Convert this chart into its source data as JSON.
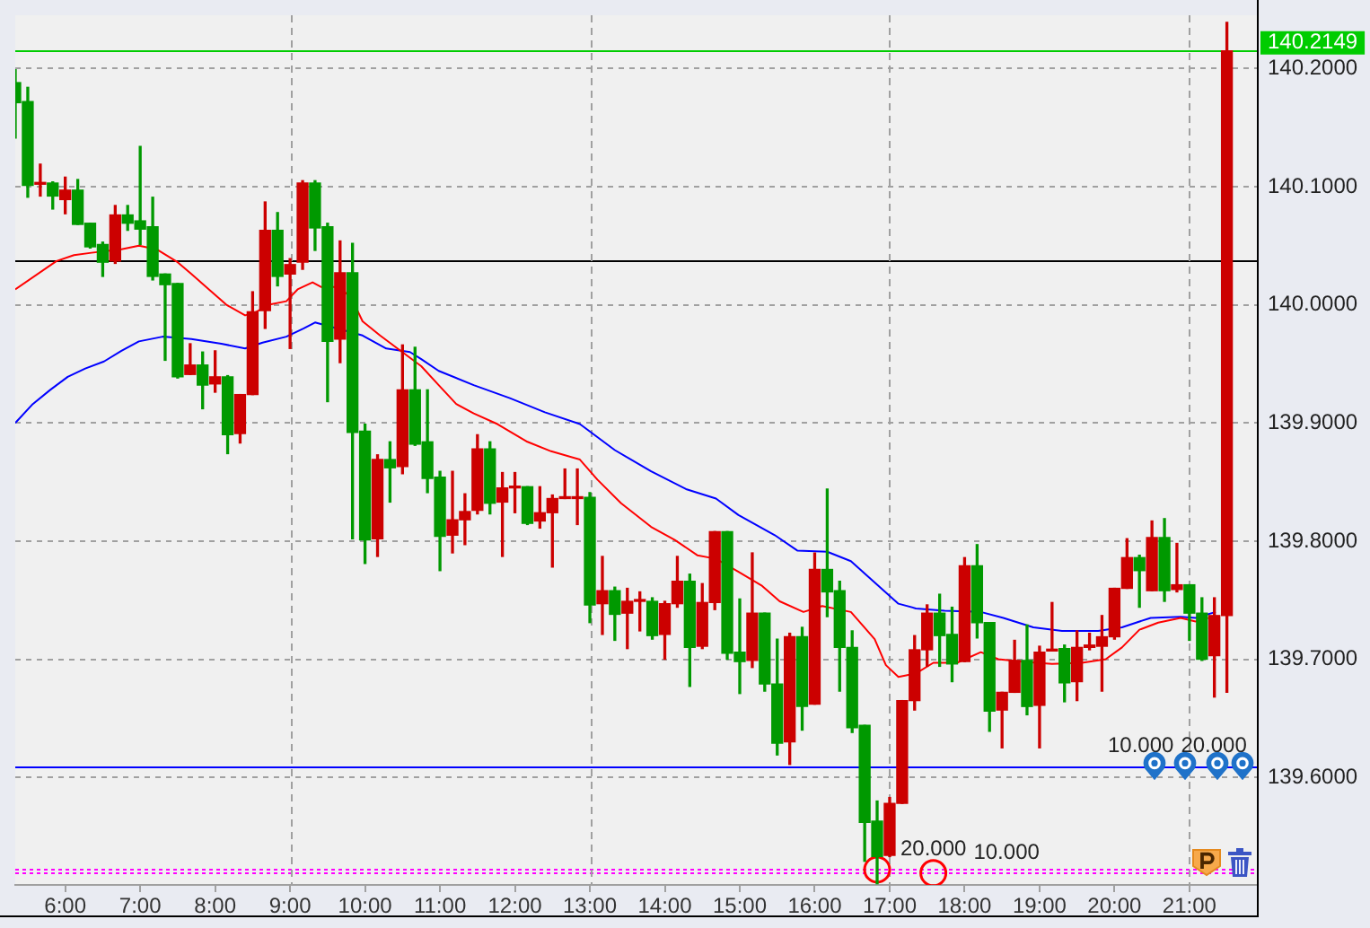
{
  "chart_data": {
    "type": "candlestick",
    "x": [
      5.333,
      5.5,
      5.667,
      5.833,
      6,
      6.167,
      6.333,
      6.5,
      6.667,
      6.833,
      7,
      7.167,
      7.333,
      7.5,
      7.667,
      7.833,
      8,
      8.167,
      8.333,
      8.5,
      8.667,
      8.833,
      9,
      9.167,
      9.333,
      9.5,
      9.667,
      9.833,
      10,
      10.167,
      10.333,
      10.5,
      10.667,
      10.833,
      11,
      11.167,
      11.333,
      11.5,
      11.667,
      11.833,
      12,
      12.167,
      12.333,
      12.5,
      12.667,
      12.833,
      13,
      13.167,
      13.333,
      13.5,
      13.667,
      13.833,
      14,
      14.167,
      14.333,
      14.5,
      14.667,
      14.833,
      15,
      15.167,
      15.333,
      15.5,
      15.667,
      15.833,
      16,
      16.167,
      16.333,
      16.5,
      16.667,
      16.833,
      17,
      17.167,
      17.333,
      17.5,
      17.667,
      17.833,
      18,
      18.167,
      18.333,
      18.5,
      18.667,
      18.833,
      19,
      19.167,
      19.333,
      19.5,
      19.667,
      19.833,
      20,
      20.167,
      20.333,
      20.5,
      20.667,
      20.833,
      21,
      21.167,
      21.333,
      21.5
    ],
    "ohlc": [
      [
        140.188,
        140.199,
        140.141,
        140.171
      ],
      [
        140.172,
        140.184,
        140.091,
        140.101
      ],
      [
        140.102,
        140.119,
        140.092,
        140.103
      ],
      [
        140.103,
        140.104,
        140.081,
        140.092
      ],
      [
        140.089,
        140.108,
        140.077,
        140.097
      ],
      [
        140.097,
        140.106,
        140.068,
        140.068
      ],
      [
        140.069,
        140.069,
        140.048,
        140.049
      ],
      [
        140.051,
        140.053,
        140.024,
        140.036
      ],
      [
        140.037,
        140.084,
        140.035,
        140.076
      ],
      [
        140.076,
        140.084,
        140.063,
        140.069
      ],
      [
        140.071,
        140.134,
        140.051,
        140.064
      ],
      [
        140.066,
        140.091,
        140.021,
        140.024
      ],
      [
        140.026,
        140.026,
        139.953,
        140.017
      ],
      [
        140.018,
        140.018,
        139.938,
        139.939
      ],
      [
        139.941,
        139.967,
        139.941,
        139.949
      ],
      [
        139.949,
        139.96,
        139.912,
        139.932
      ],
      [
        139.933,
        139.961,
        139.926,
        139.939
      ],
      [
        139.939,
        139.94,
        139.874,
        139.89
      ],
      [
        139.891,
        139.924,
        139.883,
        139.924
      ],
      [
        139.924,
        140.011,
        139.924,
        139.994
      ],
      [
        139.995,
        140.087,
        139.98,
        140.063
      ],
      [
        140.063,
        140.078,
        140.016,
        140.024
      ],
      [
        140.026,
        140.039,
        139.963,
        140.034
      ],
      [
        140.036,
        140.105,
        140.03,
        140.103
      ],
      [
        140.103,
        140.105,
        140.046,
        140.065
      ],
      [
        140.066,
        140.069,
        139.918,
        139.969
      ],
      [
        139.971,
        140.054,
        139.951,
        140.027
      ],
      [
        140.027,
        140.052,
        139.802,
        139.892
      ],
      [
        139.893,
        139.899,
        139.781,
        139.801
      ],
      [
        139.802,
        139.873,
        139.787,
        139.869
      ],
      [
        139.869,
        139.884,
        139.833,
        139.862
      ],
      [
        139.863,
        139.966,
        139.857,
        139.928
      ],
      [
        139.928,
        139.964,
        139.881,
        139.882
      ],
      [
        139.884,
        139.928,
        139.841,
        139.853
      ],
      [
        139.854,
        139.859,
        139.775,
        139.804
      ],
      [
        139.805,
        139.859,
        139.79,
        139.818
      ],
      [
        139.818,
        139.84,
        139.797,
        139.825
      ],
      [
        139.826,
        139.89,
        139.823,
        139.878
      ],
      [
        139.878,
        139.884,
        139.823,
        139.832
      ],
      [
        139.833,
        139.858,
        139.787,
        139.845
      ],
      [
        139.845,
        139.858,
        139.824,
        139.846
      ],
      [
        139.846,
        139.846,
        139.814,
        139.815
      ],
      [
        139.817,
        139.846,
        139.811,
        139.824
      ],
      [
        139.824,
        139.839,
        139.778,
        139.836
      ],
      [
        139.836,
        139.861,
        139.836,
        139.837
      ],
      [
        139.836,
        139.861,
        139.814,
        139.837
      ],
      [
        139.837,
        139.841,
        139.731,
        139.746
      ],
      [
        139.747,
        139.787,
        139.721,
        139.758
      ],
      [
        139.758,
        139.761,
        139.716,
        139.738
      ],
      [
        139.739,
        139.76,
        139.709,
        139.749
      ],
      [
        139.749,
        139.757,
        139.724,
        139.75
      ],
      [
        139.749,
        139.752,
        139.717,
        139.72
      ],
      [
        139.721,
        139.749,
        139.7,
        139.747
      ],
      [
        139.747,
        139.787,
        139.744,
        139.766
      ],
      [
        139.766,
        139.772,
        139.677,
        139.71
      ],
      [
        139.711,
        139.764,
        139.709,
        139.748
      ],
      [
        139.748,
        139.808,
        139.742,
        139.808
      ],
      [
        139.808,
        139.808,
        139.7,
        139.705
      ],
      [
        139.706,
        139.751,
        139.671,
        139.698
      ],
      [
        139.699,
        139.79,
        139.693,
        139.739
      ],
      [
        139.739,
        139.739,
        139.673,
        139.679
      ],
      [
        139.679,
        139.717,
        139.619,
        139.629
      ],
      [
        139.63,
        139.722,
        139.611,
        139.719
      ],
      [
        139.719,
        139.727,
        139.64,
        139.66
      ],
      [
        139.662,
        139.79,
        139.662,
        139.776
      ],
      [
        139.776,
        139.844,
        139.736,
        139.757
      ],
      [
        139.758,
        139.766,
        139.673,
        139.71
      ],
      [
        139.71,
        139.724,
        139.638,
        139.642
      ],
      [
        139.644,
        139.644,
        139.529,
        139.562
      ],
      [
        139.563,
        139.58,
        139.51,
        139.533
      ],
      [
        139.534,
        139.583,
        139.533,
        139.578
      ],
      [
        139.578,
        139.665,
        139.578,
        139.665
      ],
      [
        139.665,
        139.72,
        139.657,
        139.708
      ],
      [
        139.708,
        139.746,
        139.694,
        139.739
      ],
      [
        139.739,
        139.755,
        139.694,
        139.72
      ],
      [
        139.721,
        139.744,
        139.681,
        139.696
      ],
      [
        139.698,
        139.786,
        139.698,
        139.779
      ],
      [
        139.779,
        139.797,
        139.718,
        139.731
      ],
      [
        139.731,
        139.731,
        139.639,
        139.656
      ],
      [
        139.657,
        139.672,
        139.625,
        139.672
      ],
      [
        139.672,
        139.716,
        139.672,
        139.699
      ],
      [
        139.699,
        139.729,
        139.653,
        139.66
      ],
      [
        139.661,
        139.711,
        139.625,
        139.706
      ],
      [
        139.707,
        139.748,
        139.707,
        139.708
      ],
      [
        139.709,
        139.712,
        139.664,
        139.68
      ],
      [
        139.681,
        139.724,
        139.665,
        139.71
      ],
      [
        139.71,
        139.722,
        139.708,
        139.712
      ],
      [
        139.711,
        139.737,
        139.673,
        139.719
      ],
      [
        139.719,
        139.76,
        139.717,
        139.76
      ],
      [
        139.76,
        139.802,
        139.76,
        139.786
      ],
      [
        139.786,
        139.788,
        139.744,
        139.775
      ],
      [
        139.758,
        139.817,
        139.758,
        139.803
      ],
      [
        139.803,
        139.819,
        139.749,
        139.758
      ],
      [
        139.759,
        139.798,
        139.757,
        139.763
      ],
      [
        139.763,
        139.763,
        139.716,
        139.739
      ],
      [
        139.739,
        139.752,
        139.699,
        139.7
      ],
      [
        139.703,
        139.752,
        139.668,
        139.737
      ],
      [
        139.737,
        140.239,
        139.672,
        140.2149
      ]
    ],
    "colors": [
      "#009900",
      "#009900",
      "#cc0000",
      "#009900",
      "#cc0000",
      "#009900",
      "#009900",
      "#009900",
      "#cc0000",
      "#009900",
      "#009900",
      "#009900",
      "#009900",
      "#009900",
      "#cc0000",
      "#009900",
      "#cc0000",
      "#009900",
      "#cc0000",
      "#cc0000",
      "#cc0000",
      "#009900",
      "#cc0000",
      "#cc0000",
      "#009900",
      "#009900",
      "#cc0000",
      "#009900",
      "#009900",
      "#cc0000",
      "#009900",
      "#cc0000",
      "#009900",
      "#009900",
      "#009900",
      "#cc0000",
      "#cc0000",
      "#cc0000",
      "#009900",
      "#cc0000",
      "#cc0000",
      "#009900",
      "#cc0000",
      "#cc0000",
      "#cc0000",
      "#cc0000",
      "#009900",
      "#cc0000",
      "#009900",
      "#cc0000",
      "#cc0000",
      "#009900",
      "#cc0000",
      "#cc0000",
      "#009900",
      "#cc0000",
      "#cc0000",
      "#009900",
      "#009900",
      "#cc0000",
      "#009900",
      "#009900",
      "#cc0000",
      "#009900",
      "#cc0000",
      "#009900",
      "#009900",
      "#009900",
      "#009900",
      "#009900",
      "#cc0000",
      "#cc0000",
      "#cc0000",
      "#cc0000",
      "#009900",
      "#009900",
      "#cc0000",
      "#009900",
      "#009900",
      "#cc0000",
      "#cc0000",
      "#009900",
      "#cc0000",
      "#cc0000",
      "#009900",
      "#cc0000",
      "#cc0000",
      "#cc0000",
      "#cc0000",
      "#cc0000",
      "#009900",
      "#cc0000",
      "#009900",
      "#cc0000",
      "#009900",
      "#009900",
      "#cc0000",
      "#cc0000"
    ],
    "series": [
      {
        "type": "line",
        "color": "#ff0000",
        "marker": "none",
        "x": [
          5.333,
          5.883,
          6.117,
          6.35,
          6.75,
          6.983,
          7.217,
          7.5,
          7.683,
          7.917,
          8.15,
          8.4,
          8.55,
          8.717,
          8.95,
          9.1,
          9.3,
          9.417,
          9.65,
          9.817,
          9.967,
          10.2,
          10.517,
          10.75,
          10.983,
          11.217,
          11.45,
          11.767,
          12.167,
          12.483,
          12.867,
          13.1,
          13.417,
          13.817,
          14.133,
          14.433,
          14.683,
          14.983,
          15.3,
          15.533,
          15.85,
          16.1,
          16.483,
          16.8,
          16.95,
          17.117,
          17.35,
          17.583,
          17.9,
          18.217,
          18.45,
          18.767,
          19.167,
          19.567,
          19.883,
          20.1,
          20.333,
          20.583,
          20.883,
          21.083,
          21.25
        ],
        "values": [
          140.013,
          140.037,
          140.042,
          140.044,
          140.047,
          140.05,
          140.047,
          140.036,
          140.026,
          140.013,
          140.0,
          139.991,
          139.994,
          140.0,
          140.003,
          140.013,
          140.019,
          140.015,
          140.015,
          140.006,
          139.986,
          139.974,
          139.959,
          139.948,
          139.932,
          139.916,
          139.908,
          139.899,
          139.884,
          139.876,
          139.869,
          139.852,
          139.832,
          139.812,
          139.801,
          139.788,
          139.785,
          139.774,
          139.762,
          139.749,
          139.74,
          139.745,
          139.74,
          139.717,
          139.695,
          139.685,
          139.688,
          139.697,
          139.697,
          139.706,
          139.7,
          139.698,
          139.696,
          139.697,
          139.7,
          139.71,
          139.725,
          139.731,
          139.735,
          139.732,
          139.735
        ]
      },
      {
        "type": "line",
        "color": "#0000ff",
        "marker": "none",
        "x": [
          5.333,
          5.567,
          5.8,
          6.033,
          6.267,
          6.517,
          6.75,
          6.983,
          7.3,
          7.683,
          8.083,
          8.4,
          8.633,
          8.95,
          9.183,
          9.333,
          9.967,
          10.283,
          10.6,
          10.75,
          10.983,
          11.45,
          11.933,
          12.4,
          12.867,
          13.333,
          13.817,
          14.283,
          14.683,
          14.983,
          15.467,
          15.767,
          16.167,
          16.483,
          16.8,
          17.117,
          17.35,
          17.733,
          18.217,
          18.517,
          18.917,
          19.3,
          19.783,
          20.1,
          20.483,
          20.883,
          21.083,
          21.35
        ],
        "values": [
          139.9,
          139.916,
          139.928,
          139.939,
          139.946,
          139.952,
          139.961,
          139.969,
          139.973,
          139.971,
          139.967,
          139.963,
          139.968,
          139.973,
          139.98,
          139.985,
          139.974,
          139.963,
          139.96,
          139.954,
          139.944,
          139.932,
          139.921,
          139.909,
          139.899,
          139.877,
          139.859,
          139.844,
          139.836,
          139.822,
          139.805,
          139.792,
          139.791,
          139.783,
          139.765,
          139.747,
          139.743,
          139.741,
          139.74,
          139.735,
          139.727,
          139.724,
          139.724,
          139.727,
          139.735,
          139.736,
          139.735,
          139.74
        ]
      },
      {
        "type": "scatter",
        "color": "#ff0000",
        "marker": "circle",
        "x": [
          16.833,
          17.583
        ],
        "values": [
          139.522,
          139.519
        ]
      }
    ],
    "xlim": [
      5.333,
      21.9
    ],
    "xticks": [
      {
        "value": 6,
        "label": "6:00"
      },
      {
        "value": 7,
        "label": "7:00"
      },
      {
        "value": 8,
        "label": "8:00"
      },
      {
        "value": 9,
        "label": "9:00"
      },
      {
        "value": 10,
        "label": "10:00"
      },
      {
        "value": 11,
        "label": "11:00"
      },
      {
        "value": 12,
        "label": "12:00"
      },
      {
        "value": 13,
        "label": "13:00"
      },
      {
        "value": 14,
        "label": "14:00"
      },
      {
        "value": 15,
        "label": "15:00"
      },
      {
        "value": 16,
        "label": "16:00"
      },
      {
        "value": 17,
        "label": "17:00"
      },
      {
        "value": 18,
        "label": "18:00"
      },
      {
        "value": 19,
        "label": "19:00"
      },
      {
        "value": 20,
        "label": "20:00"
      },
      {
        "value": 21,
        "label": "21:00"
      }
    ],
    "ylim": [
      139.509,
      140.245
    ],
    "yticks": [
      {
        "value": 139.6,
        "label": "139.6000"
      },
      {
        "value": 139.7,
        "label": "139.7000"
      },
      {
        "value": 139.8,
        "label": "139.8000"
      },
      {
        "value": 139.9,
        "label": "139.9000"
      },
      {
        "value": 140.0,
        "label": "140.0000"
      },
      {
        "value": 140.1,
        "label": "140.1000"
      },
      {
        "value": 140.2,
        "label": "140.2000"
      }
    ],
    "grid": "y",
    "legend": false,
    "ref_lines": [
      {
        "axis": "y",
        "value": 140.2149,
        "label": "140.2149",
        "color": "#00cc00",
        "line_style": "solid"
      },
      {
        "axis": "y",
        "value": 140.037,
        "color": "#000000",
        "line_style": "solid"
      },
      {
        "axis": "y",
        "value": 139.609,
        "color": "#0000ff",
        "line_style": "solid"
      },
      {
        "axis": "y",
        "value": 139.522,
        "color": "#ff00ff",
        "line_style": "dotted"
      },
      {
        "axis": "y",
        "value": 139.519,
        "color": "#ff00ff",
        "line_style": "dotted"
      },
      {
        "axis": "x",
        "value": 9,
        "color": "#a0a0a0",
        "line_style": "dashed"
      },
      {
        "axis": "x",
        "value": 13,
        "color": "#a0a0a0",
        "line_style": "dashed"
      },
      {
        "axis": "x",
        "value": 17,
        "color": "#a0a0a0",
        "line_style": "dashed"
      },
      {
        "axis": "x",
        "value": 21,
        "color": "#a0a0a0",
        "line_style": "dashed"
      }
    ],
    "annotations": [
      {
        "text": "20.000",
        "x": 16.833,
        "y": 139.522
      },
      {
        "text": "10.000",
        "x": 17.583,
        "y": 139.519
      },
      {
        "text": "10.000",
        "x": 19.6,
        "y": 139.609
      },
      {
        "text": "20.000",
        "x": 20.5,
        "y": 139.609
      }
    ]
  }
}
